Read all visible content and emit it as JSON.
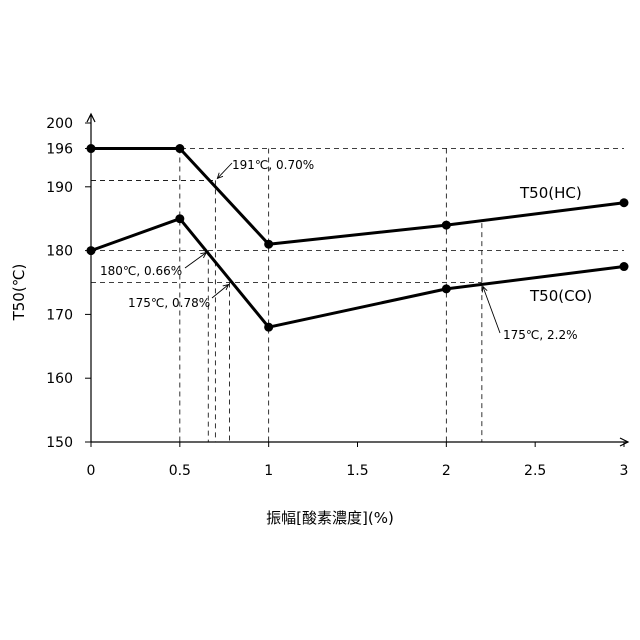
{
  "chart_data": {
    "type": "line",
    "xlabel": "振幅[酸素濃度](%)",
    "ylabel": "T50(℃)",
    "xlim": [
      0,
      3
    ],
    "ylim": [
      150,
      200
    ],
    "x_ticks": [
      "0",
      "0.5",
      "1",
      "1.5",
      "2",
      "2.5",
      "3"
    ],
    "x_tick_values": [
      0,
      0.5,
      1,
      1.5,
      2,
      2.5,
      3
    ],
    "y_ticks": [
      "150",
      "160",
      "170",
      "180",
      "190",
      "196",
      "200"
    ],
    "y_tick_values": [
      150,
      160,
      170,
      180,
      190,
      196,
      200
    ],
    "grid": false,
    "series": [
      {
        "name": "T50(HC)",
        "x": [
          0,
          0.5,
          1,
          2,
          3
        ],
        "y": [
          196,
          196,
          181,
          184,
          187.5
        ]
      },
      {
        "name": "T50(CO)",
        "x": [
          0,
          0.5,
          1,
          2,
          3
        ],
        "y": [
          180,
          185,
          168,
          174,
          177.5
        ]
      }
    ],
    "annotations": [
      {
        "text": "191℃, 0.70%",
        "x": 0.7,
        "y": 191
      },
      {
        "text": "180℃, 0.66%",
        "x": 0.66,
        "y": 180
      },
      {
        "text": "175℃, 0.78%",
        "x": 0.78,
        "y": 175
      },
      {
        "text": "175℃, 2.2%",
        "x": 2.2,
        "y": 175
      }
    ]
  }
}
